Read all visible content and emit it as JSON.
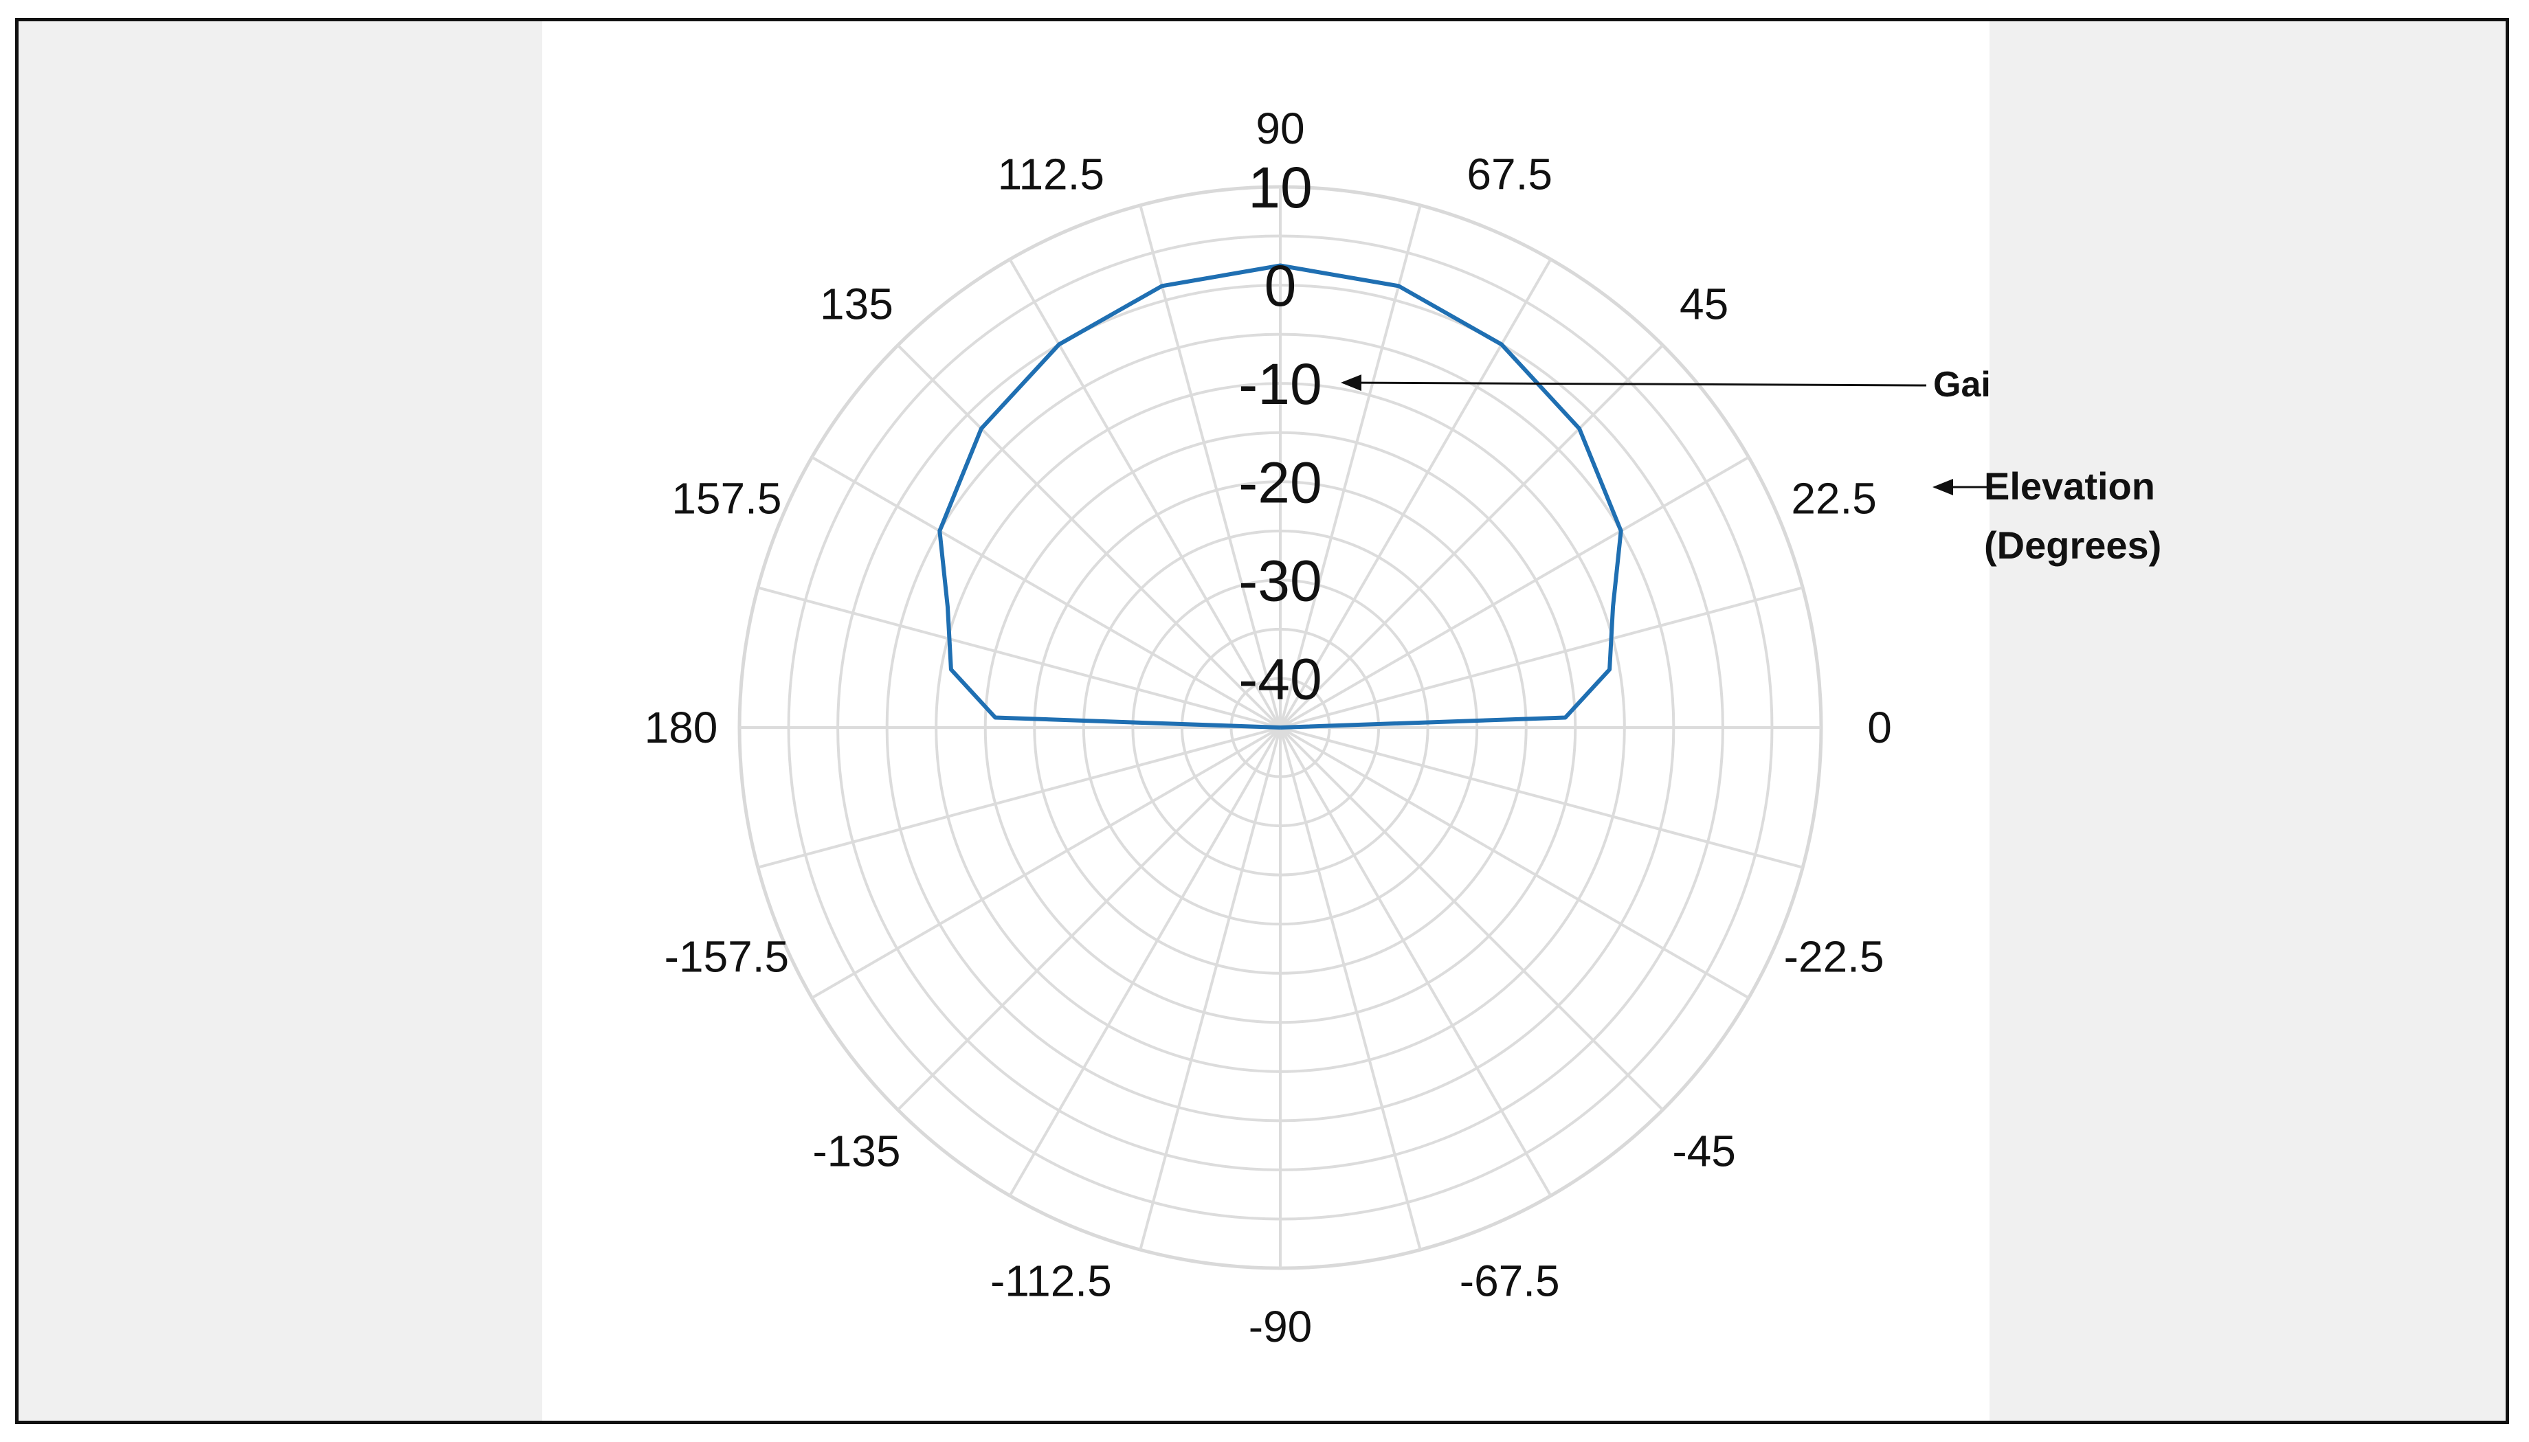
{
  "chart_data": {
    "type": "polar-line",
    "theta_unit": "degrees",
    "r_unit": "dBi",
    "theta_ticks": [
      "0",
      "22.5",
      "45",
      "67.5",
      "90",
      "112.5",
      "135",
      "157.5",
      "180",
      "-157.5",
      "-135",
      "-112.5",
      "-90",
      "-67.5",
      "-45",
      "-22.5"
    ],
    "r_ticks": [
      "10",
      "0",
      "-10",
      "-20",
      "-30",
      "-40"
    ],
    "r_range": [
      -45,
      10
    ],
    "grid": true,
    "annotations": {
      "r_axis_label": "Gain (dBi)",
      "theta_axis_label_line1": "Elevation",
      "theta_axis_label_line2": "(Degrees)"
    },
    "series": [
      {
        "color": "#1f6fb2",
        "points": [
          {
            "theta": 0,
            "r": -45
          },
          {
            "theta": 2,
            "r": -16
          },
          {
            "theta": 10,
            "r": -11
          },
          {
            "theta": 20,
            "r": -9
          },
          {
            "theta": 30,
            "r": -5
          },
          {
            "theta": 45,
            "r": -2
          },
          {
            "theta": 60,
            "r": 0
          },
          {
            "theta": 75,
            "r": 1.5
          },
          {
            "theta": 90,
            "r": 2
          },
          {
            "theta": 105,
            "r": 1.5
          },
          {
            "theta": 120,
            "r": 0
          },
          {
            "theta": 135,
            "r": -2
          },
          {
            "theta": 150,
            "r": -5
          },
          {
            "theta": 160,
            "r": -9
          },
          {
            "theta": 170,
            "r": -11
          },
          {
            "theta": 178,
            "r": -16
          },
          {
            "theta": 180,
            "r": -45
          }
        ]
      }
    ]
  }
}
